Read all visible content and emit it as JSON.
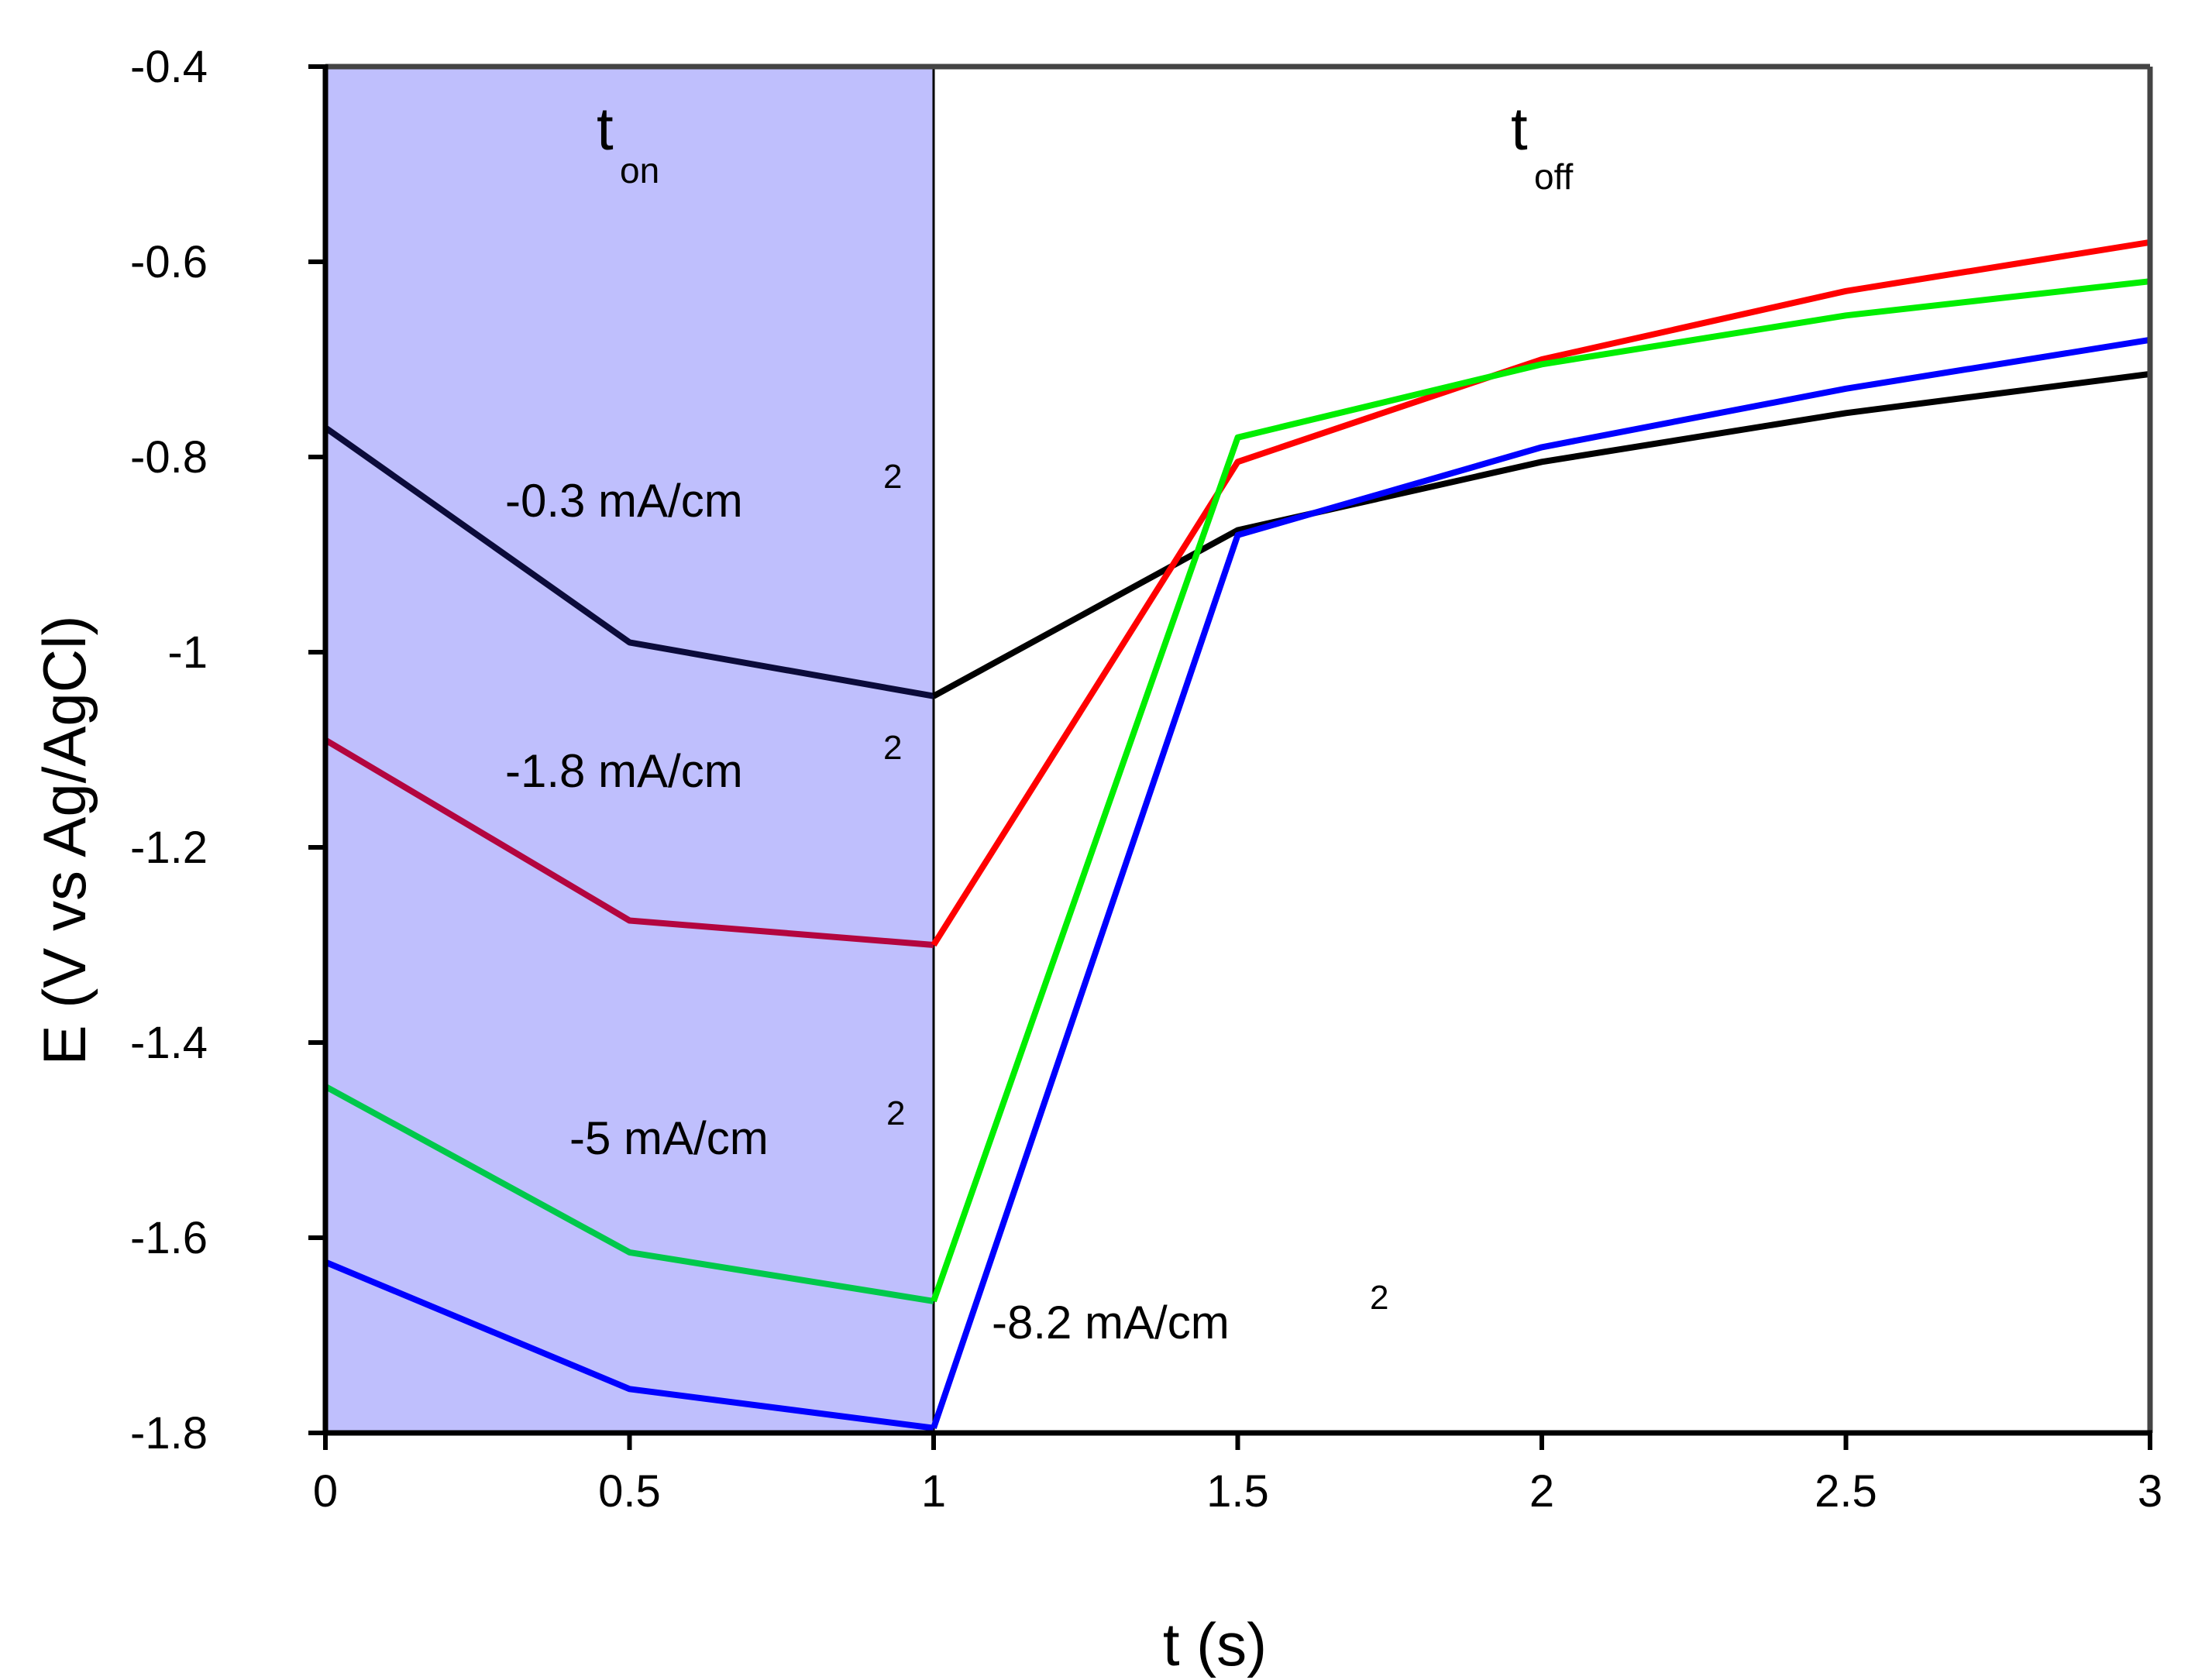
{
  "chart_data": {
    "type": "line",
    "title": "",
    "xlabel": "t (s)",
    "ylabel": "E (V vs Ag/AgCl)",
    "xlim": [
      0,
      3
    ],
    "ylim": [
      -1.8,
      -0.4
    ],
    "xticks": [
      0,
      0.5,
      1,
      1.5,
      2,
      2.5,
      3
    ],
    "xtick_labels": [
      "0",
      "0.5",
      "1",
      "1.5",
      "2",
      "2.5",
      "3"
    ],
    "yticks": [
      -0.4,
      -0.6,
      -0.8,
      -1,
      -1.2,
      -1.4,
      -1.6,
      -1.8
    ],
    "ytick_labels": [
      "-0.4",
      "-0.6",
      "-0.8",
      "-1",
      "-1.2",
      "-1.4",
      "-1.6",
      "-1.8"
    ],
    "grid": false,
    "shaded_region": {
      "x_start": 0,
      "x_end": 1,
      "color": "#bfbffd"
    },
    "region_labels": [
      {
        "main": "t",
        "sub": "on"
      },
      {
        "main": "t",
        "sub": "off"
      }
    ],
    "series": [
      {
        "name": "-0.3 mA/cm",
        "superscript": "2",
        "x": [
          0,
          0.5,
          1,
          1.5,
          2,
          2.5,
          3
        ],
        "values": [
          -0.77,
          -0.99,
          -1.045,
          -0.875,
          -0.805,
          -0.755,
          -0.715
        ],
        "color_on": "#0b0b3a",
        "color_off": "#000000"
      },
      {
        "name": "-1.8 mA/cm",
        "superscript": "2",
        "x": [
          0,
          0.5,
          1,
          1.5,
          2,
          2.5,
          3
        ],
        "values": [
          -1.09,
          -1.275,
          -1.3,
          -0.805,
          -0.7,
          -0.63,
          -0.58
        ],
        "color_on": "#b3053f",
        "color_off": "#ff0000"
      },
      {
        "name": "-5 mA/cm",
        "superscript": "2",
        "x": [
          0,
          0.5,
          1,
          1.5,
          2,
          2.5,
          3
        ],
        "values": [
          -1.445,
          -1.615,
          -1.665,
          -0.78,
          -0.705,
          -0.655,
          -0.62
        ],
        "color_on": "#00c84b",
        "color_off": "#00ee00"
      },
      {
        "name": "-8.2 mA/cm",
        "superscript": "2",
        "x": [
          0,
          0.5,
          1,
          1.5,
          2,
          2.5,
          3
        ],
        "values": [
          -1.625,
          -1.755,
          -1.795,
          -0.88,
          -0.79,
          -0.73,
          -0.68
        ],
        "color_on": "#0000ff",
        "color_off": "#0000ff"
      }
    ]
  }
}
